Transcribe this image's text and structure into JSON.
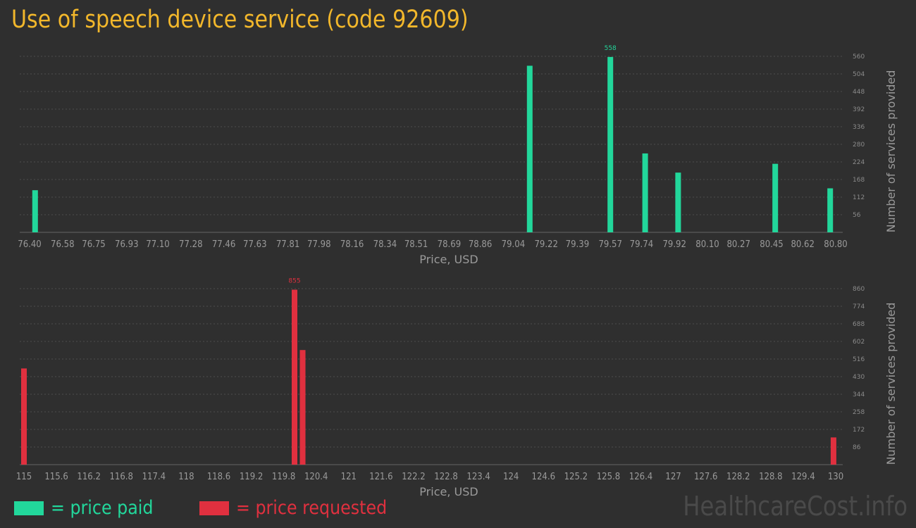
{
  "title": "Use of speech device service (code 92609)",
  "watermark": "HealthcareCost.info",
  "legend": {
    "paid": {
      "label": "= price paid",
      "color": "#22d79b"
    },
    "requested": {
      "label": "= price requested",
      "color": "#e0303f"
    }
  },
  "chart_data": [
    {
      "type": "bar",
      "id": "paid",
      "color": "#22d79b",
      "xlabel": "Price, USD",
      "ylabel": "Number of services provided",
      "xlim": [
        76.4,
        80.8
      ],
      "ylim": [
        0,
        560
      ],
      "xticks": [
        "76.40",
        "76.58",
        "76.75",
        "76.93",
        "77.10",
        "77.28",
        "77.46",
        "77.63",
        "77.81",
        "77.98",
        "78.16",
        "78.34",
        "78.51",
        "78.69",
        "78.86",
        "79.04",
        "79.22",
        "79.39",
        "79.57",
        "79.74",
        "79.92",
        "80.10",
        "80.27",
        "80.45",
        "80.62",
        "80.80"
      ],
      "yticks": [
        56,
        112,
        168,
        224,
        280,
        336,
        392,
        448,
        504,
        560
      ],
      "bars": [
        {
          "x": 76.43,
          "value": 134
        },
        {
          "x": 79.13,
          "value": 530
        },
        {
          "x": 79.57,
          "value": 558,
          "label": "558"
        },
        {
          "x": 79.76,
          "value": 251
        },
        {
          "x": 79.94,
          "value": 190
        },
        {
          "x": 80.47,
          "value": 218
        },
        {
          "x": 80.77,
          "value": 140
        }
      ]
    },
    {
      "type": "bar",
      "id": "requested",
      "color": "#e0303f",
      "xlabel": "Price, USD",
      "ylabel": "Number of services provided",
      "xlim": [
        115,
        130
      ],
      "ylim": [
        0,
        860
      ],
      "xticks": [
        "115",
        "115.6",
        "116.2",
        "116.8",
        "117.4",
        "118",
        "118.6",
        "119.2",
        "119.8",
        "120.4",
        "121",
        "121.6",
        "122.2",
        "122.8",
        "123.4",
        "124",
        "124.6",
        "125.2",
        "125.8",
        "126.4",
        "127",
        "127.6",
        "128.2",
        "128.8",
        "129.4",
        "130"
      ],
      "yticks": [
        86,
        172,
        258,
        344,
        430,
        516,
        602,
        688,
        774,
        860
      ],
      "bars": [
        {
          "x": 115.0,
          "value": 470
        },
        {
          "x": 120.0,
          "value": 855,
          "label": "855"
        },
        {
          "x": 120.15,
          "value": 560
        },
        {
          "x": 129.96,
          "value": 133
        }
      ]
    }
  ]
}
